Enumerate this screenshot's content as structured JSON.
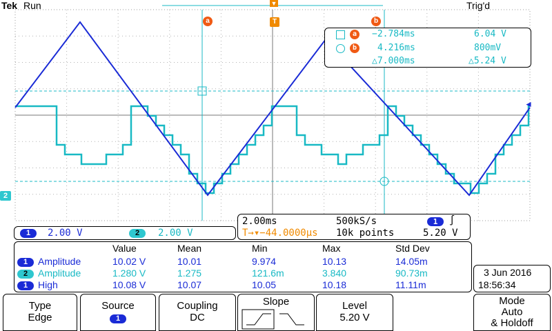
{
  "header": {
    "brand": "Tek",
    "run_state": "Run",
    "trigger_state": "Trig'd"
  },
  "markers": {
    "cursor_a": "a",
    "cursor_b": "b",
    "trigger_pos": "T",
    "ch2_ground": "2",
    "trigger_level": "◄"
  },
  "cursor_readout": {
    "a_time": "−2.784ms",
    "a_value": "6.04 V",
    "b_time": "4.216ms",
    "b_value": "800mV",
    "delta_time": "△7.000ms",
    "delta_value": "△5.24 V"
  },
  "channels": {
    "ch1": {
      "number": "1",
      "scale": "2.00 V"
    },
    "ch2": {
      "number": "2",
      "scale": "2.00 V"
    }
  },
  "timebase": {
    "time_per_div": "2.00ms",
    "sample_rate": "500kS/s",
    "trigger_source": "1",
    "trigger_slope_symbol": "∫",
    "position": "T→▾−44.0000µs",
    "record_length": "10k points",
    "trigger_level": "5.20 V"
  },
  "measurements": {
    "headers": [
      "Value",
      "Mean",
      "Min",
      "Max",
      "Std Dev"
    ],
    "rows": [
      {
        "channel": "1",
        "name": "Amplitude",
        "value": "10.02 V",
        "mean": "10.01",
        "min": "9.974",
        "max": "10.13",
        "std": "14.05m"
      },
      {
        "channel": "2",
        "name": "Amplitude",
        "value": "1.280 V",
        "mean": "1.275",
        "min": "121.6m",
        "max": "3.840",
        "std": "90.73m"
      },
      {
        "channel": "1",
        "name": "High",
        "value": "10.08 V",
        "mean": "10.07",
        "min": "10.05",
        "max": "10.18",
        "std": "11.11m"
      }
    ]
  },
  "datetime": {
    "date": "3 Jun 2016",
    "time": "18:56:34"
  },
  "menu": {
    "type_label": "Type",
    "type_value": "Edge",
    "source_label": "Source",
    "source_value": "1",
    "coupling_label": "Coupling",
    "coupling_value": "DC",
    "slope_label": "Slope",
    "level_label": "Level",
    "level_value": "5.20 V",
    "mode_label": "Mode",
    "mode_value": "Auto",
    "mode_extra": "& Holdoff"
  },
  "colors": {
    "ch1": "#1a2bd6",
    "ch2": "#18b9c4",
    "cursor": "#18b9c4",
    "trigger": "#f08a00",
    "marker": "#f05a14"
  }
}
